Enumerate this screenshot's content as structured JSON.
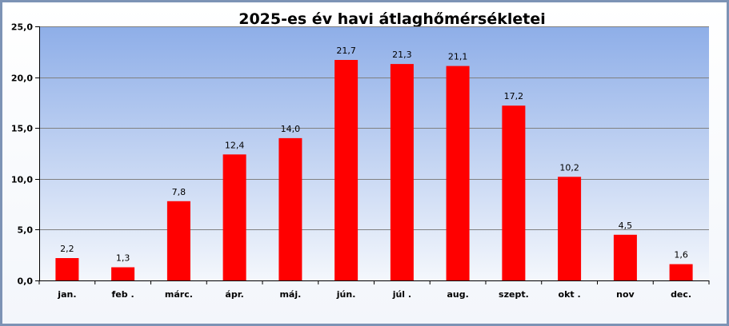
{
  "chart_data": {
    "type": "bar",
    "title": "2025-es év havi  átlaghőmérsékletei",
    "xlabel": "",
    "ylabel": "",
    "categories": [
      "jan.",
      "feb .",
      "márc.",
      "ápr.",
      "máj.",
      "jún.",
      "júl .",
      "aug.",
      "szept.",
      "okt .",
      "nov",
      "dec."
    ],
    "values": [
      2.2,
      1.3,
      7.8,
      12.4,
      14.0,
      21.7,
      21.3,
      21.1,
      17.2,
      10.2,
      4.5,
      1.6
    ],
    "data_labels": [
      "2,2",
      "1,3",
      "7,8",
      "12,4",
      "14,0",
      "21,7",
      "21,3",
      "21,1",
      "17,2",
      "10,2",
      "4,5",
      "1,6"
    ],
    "ylim": [
      0,
      25
    ],
    "yticks": [
      0,
      5,
      10,
      15,
      20,
      25
    ],
    "ytick_labels": [
      "0,0",
      "5,0",
      "10,0",
      "15,0",
      "20,0",
      "25,0"
    ],
    "grid": true,
    "legend": "none",
    "colors": {
      "bar": "#ff0000",
      "plot_top": "#8eaee8",
      "plot_bottom": "#f4f7fc",
      "grid": "#808080",
      "frame": "#7d93b5"
    }
  }
}
